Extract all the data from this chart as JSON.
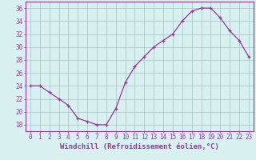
{
  "x": [
    0,
    1,
    2,
    3,
    4,
    5,
    6,
    7,
    8,
    9,
    10,
    11,
    12,
    13,
    14,
    15,
    16,
    17,
    18,
    19,
    20,
    21,
    22,
    23
  ],
  "y": [
    24,
    24,
    23,
    22,
    21,
    19,
    18.5,
    18,
    18,
    20.5,
    24.5,
    27,
    28.5,
    30,
    31,
    32,
    34,
    35.5,
    36,
    36,
    34.5,
    32.5,
    31,
    28.5
  ],
  "line_color": "#993399",
  "marker_color": "#993399",
  "bg_color": "#d8f0f0",
  "grid_color": "#aacccc",
  "axis_color": "#993399",
  "tick_label_color": "#993399",
  "xlabel": "Windchill (Refroidissement éolien,°C)",
  "ylim": [
    17,
    37
  ],
  "yticks": [
    18,
    20,
    22,
    24,
    26,
    28,
    30,
    32,
    34,
    36
  ],
  "xticks": [
    0,
    1,
    2,
    3,
    4,
    5,
    6,
    7,
    8,
    9,
    10,
    11,
    12,
    13,
    14,
    15,
    16,
    17,
    18,
    19,
    20,
    21,
    22,
    23
  ],
  "xlabel_fontsize": 6.5,
  "tick_fontsize": 5.5
}
